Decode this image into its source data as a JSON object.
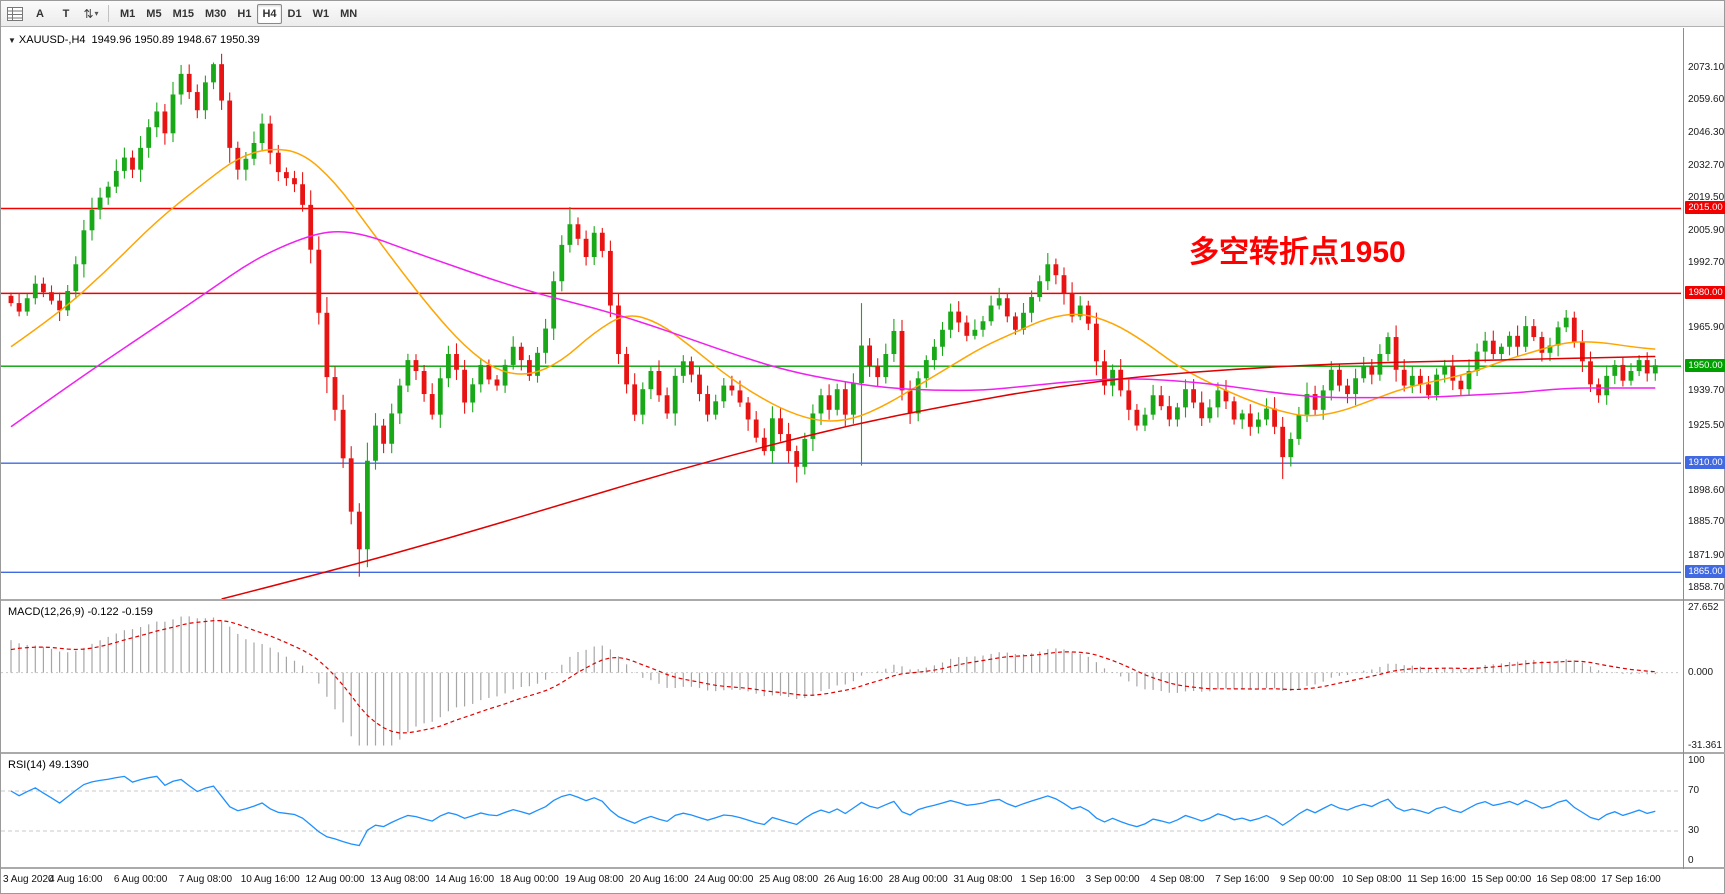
{
  "toolbar": {
    "buttons": [
      {
        "label": "A"
      },
      {
        "label": "T"
      }
    ],
    "cycle_glyph": "⇅",
    "timeframes": [
      "M1",
      "M5",
      "M15",
      "M30",
      "H1",
      "H4",
      "D1",
      "W1",
      "MN"
    ],
    "active_timeframe": "H4"
  },
  "header": {
    "symbol": "XAUUSD-,H4",
    "ohlc": "1949.96 1950.89 1948.67 1950.39"
  },
  "indicators": {
    "macd_label": "MACD(12,26,9) -0.122 -0.159",
    "rsi_label": "RSI(14) 49.1390"
  },
  "annotation": {
    "text": "多空转折点1950",
    "color": "#ff0000"
  },
  "chart_data": {
    "type": "candlestick",
    "symbol": "XAUUSD",
    "timeframe": "H4",
    "colors": {
      "up": "#18a818",
      "down": "#e81414",
      "ma_fast": "#ffa500",
      "ma_medium": "#f020f0",
      "ma_slow": "#e00000",
      "macd_hist": "#a6a6a6",
      "macd_signal": "#e00000",
      "rsi_line": "#1e90ff",
      "grid_dash": "#c8c8c8"
    },
    "y_ticks": [
      {
        "price": 2073.1,
        "label": "2073.10"
      },
      {
        "price": 2059.6,
        "label": "2059.60"
      },
      {
        "price": 2046.3,
        "label": "2046.30"
      },
      {
        "price": 2032.7,
        "label": "2032.70"
      },
      {
        "price": 2019.5,
        "label": "2019.50"
      },
      {
        "price": 2005.9,
        "label": "2005.90"
      },
      {
        "price": 1992.7,
        "label": "1992.70"
      },
      {
        "price": 1965.9,
        "label": "1965.90"
      },
      {
        "price": 1939.7,
        "label": "1939.70"
      },
      {
        "price": 1925.5,
        "label": "1925.50"
      },
      {
        "price": 1898.6,
        "label": "1898.60"
      },
      {
        "price": 1885.7,
        "label": "1885.70"
      },
      {
        "price": 1871.9,
        "label": "1871.90"
      },
      {
        "price": 1858.7,
        "label": "1858.70"
      }
    ],
    "levels": [
      {
        "price": 2015.0,
        "label": "2015.00",
        "color": "#f20000"
      },
      {
        "price": 1980.0,
        "label": "1980.00",
        "color": "#f20000"
      },
      {
        "price": 1950.0,
        "label": "1950.00",
        "color": "#00a000"
      },
      {
        "price": 1910.0,
        "label": "1910.00",
        "color": "#4169e1"
      },
      {
        "price": 1865.0,
        "label": "1865.00",
        "color": "#4169e1"
      }
    ],
    "x_labels": [
      "3 Aug 2020",
      "4 Aug 16:00",
      "6 Aug 00:00",
      "7 Aug 08:00",
      "10 Aug 16:00",
      "12 Aug 00:00",
      "13 Aug 08:00",
      "14 Aug 16:00",
      "18 Aug 00:00",
      "19 Aug 08:00",
      "20 Aug 16:00",
      "24 Aug 00:00",
      "25 Aug 08:00",
      "26 Aug 16:00",
      "28 Aug 00:00",
      "31 Aug 08:00",
      "1 Sep 16:00",
      "3 Sep 00:00",
      "4 Sep 08:00",
      "7 Sep 16:00",
      "9 Sep 00:00",
      "10 Sep 08:00",
      "11 Sep 16:00",
      "15 Sep 00:00",
      "16 Sep 08:00",
      "17 Sep 16:00"
    ],
    "closes": [
      1976.0,
      1972.5,
      1978.0,
      1984.0,
      1980.5,
      1977.0,
      1973.0,
      1981.0,
      1992.0,
      2006.0,
      2014.5,
      2019.5,
      2024.0,
      2030.5,
      2036.0,
      2031.0,
      2040.0,
      2048.5,
      2055.0,
      2046.0,
      2062.0,
      2070.5,
      2063.0,
      2055.5,
      2067.0,
      2074.5,
      2059.5,
      2040.0,
      2031.0,
      2035.5,
      2042.0,
      2050.0,
      2038.0,
      2030.0,
      2027.5,
      2025.0,
      2016.5,
      1998.0,
      1972.0,
      1945.5,
      1932.0,
      1912.0,
      1890.0,
      1874.5,
      1911.0,
      1925.5,
      1918.0,
      1930.5,
      1942.0,
      1952.5,
      1948.0,
      1938.5,
      1930.0,
      1945.0,
      1955.0,
      1948.5,
      1935.0,
      1942.5,
      1950.5,
      1944.5,
      1942.0,
      1950.5,
      1958.0,
      1952.5,
      1946.0,
      1955.5,
      1965.5,
      1985.0,
      2000.0,
      2008.5,
      2002.5,
      1995.0,
      2005.0,
      1997.5,
      1975.0,
      1955.0,
      1942.5,
      1930.0,
      1940.5,
      1948.0,
      1938.0,
      1930.5,
      1946.0,
      1952.0,
      1946.5,
      1938.5,
      1930.0,
      1935.5,
      1942.0,
      1940.0,
      1935.0,
      1928.0,
      1920.5,
      1915.0,
      1928.5,
      1922.0,
      1915.0,
      1908.5,
      1920.0,
      1930.5,
      1938.0,
      1932.0,
      1940.5,
      1930.0,
      1943.0,
      1958.5,
      1950.0,
      1945.5,
      1955.0,
      1964.5,
      1940.0,
      1930.5,
      1945.0,
      1952.5,
      1958.0,
      1965.0,
      1972.5,
      1968.0,
      1962.5,
      1965.0,
      1968.5,
      1975.0,
      1978.0,
      1970.5,
      1965.0,
      1972.0,
      1978.5,
      1985.0,
      1992.0,
      1987.5,
      1980.0,
      1970.5,
      1975.0,
      1967.5,
      1952.0,
      1942.0,
      1948.5,
      1940.0,
      1932.0,
      1925.5,
      1930.0,
      1938.0,
      1933.5,
      1928.0,
      1933.0,
      1940.5,
      1935.0,
      1928.5,
      1933.0,
      1940.0,
      1935.5,
      1928.0,
      1930.5,
      1925.0,
      1928.0,
      1932.5,
      1925.0,
      1912.5,
      1920.0,
      1930.0,
      1938.5,
      1932.0,
      1940.0,
      1948.5,
      1942.0,
      1938.5,
      1945.0,
      1950.0,
      1946.5,
      1955.0,
      1962.0,
      1948.5,
      1942.0,
      1946.0,
      1942.5,
      1938.0,
      1946.5,
      1950.0,
      1944.0,
      1940.5,
      1948.0,
      1956.0,
      1960.5,
      1955.0,
      1958.0,
      1962.5,
      1958.0,
      1966.5,
      1962.0,
      1955.5,
      1958.5,
      1966.0,
      1970.0,
      1960.0,
      1952.0,
      1942.5,
      1938.0,
      1946.0,
      1950.5,
      1944.0,
      1948.0,
      1952.5,
      1947.0,
      1950.4
    ],
    "wick_overrides": {
      "25": {
        "high": 2075.2
      },
      "43": {
        "low": 1863.2
      },
      "69": {
        "high": 2015.6
      },
      "97": {
        "low": 1902.0
      },
      "105": {
        "low": 1909.0,
        "high": 1976.0
      },
      "157": {
        "low": 1903.5
      }
    },
    "moving_averages": [
      {
        "name": "ma-fast",
        "color": "#ffa500",
        "points": [
          [
            0,
            1958
          ],
          [
            6,
            1972
          ],
          [
            12,
            1990
          ],
          [
            18,
            2010
          ],
          [
            24,
            2026
          ],
          [
            28,
            2036
          ],
          [
            32,
            2040
          ],
          [
            36,
            2038
          ],
          [
            40,
            2026
          ],
          [
            44,
            2008
          ],
          [
            48,
            1990
          ],
          [
            52,
            1973
          ],
          [
            56,
            1958
          ],
          [
            60,
            1948
          ],
          [
            64,
            1946
          ],
          [
            68,
            1952
          ],
          [
            72,
            1964
          ],
          [
            76,
            1972
          ],
          [
            80,
            1968
          ],
          [
            84,
            1958
          ],
          [
            88,
            1947
          ],
          [
            92,
            1938
          ],
          [
            96,
            1931
          ],
          [
            100,
            1927
          ],
          [
            104,
            1928
          ],
          [
            108,
            1934
          ],
          [
            112,
            1942
          ],
          [
            116,
            1950
          ],
          [
            120,
            1958
          ],
          [
            124,
            1964
          ],
          [
            128,
            1970
          ],
          [
            132,
            1972
          ],
          [
            136,
            1968
          ],
          [
            140,
            1960
          ],
          [
            144,
            1950
          ],
          [
            148,
            1943
          ],
          [
            152,
            1937
          ],
          [
            156,
            1932
          ],
          [
            160,
            1929
          ],
          [
            164,
            1931
          ],
          [
            168,
            1936
          ],
          [
            172,
            1941
          ],
          [
            176,
            1944
          ],
          [
            180,
            1947
          ],
          [
            184,
            1952
          ],
          [
            188,
            1956
          ],
          [
            192,
            1960
          ],
          [
            196,
            1960
          ],
          [
            200,
            1958
          ],
          [
            203,
            1957
          ]
        ]
      },
      {
        "name": "ma-medium",
        "color": "#f020f0",
        "points": [
          [
            0,
            1925
          ],
          [
            8,
            1944
          ],
          [
            16,
            1962
          ],
          [
            24,
            1980
          ],
          [
            30,
            1994
          ],
          [
            36,
            2003
          ],
          [
            40,
            2006
          ],
          [
            44,
            2004
          ],
          [
            48,
            1999
          ],
          [
            54,
            1992
          ],
          [
            60,
            1985
          ],
          [
            66,
            1979
          ],
          [
            72,
            1974
          ],
          [
            78,
            1968
          ],
          [
            84,
            1961
          ],
          [
            90,
            1954
          ],
          [
            96,
            1948
          ],
          [
            102,
            1944
          ],
          [
            108,
            1941
          ],
          [
            114,
            1940
          ],
          [
            120,
            1940
          ],
          [
            126,
            1942
          ],
          [
            132,
            1944
          ],
          [
            138,
            1945
          ],
          [
            144,
            1944
          ],
          [
            150,
            1942
          ],
          [
            156,
            1939
          ],
          [
            162,
            1937
          ],
          [
            168,
            1937
          ],
          [
            174,
            1937
          ],
          [
            180,
            1938
          ],
          [
            186,
            1939
          ],
          [
            192,
            1941
          ],
          [
            198,
            1941
          ],
          [
            203,
            1941
          ]
        ]
      },
      {
        "name": "ma-slow",
        "color": "#e00000",
        "points": [
          [
            26,
            1854
          ],
          [
            40,
            1866
          ],
          [
            54,
            1879
          ],
          [
            68,
            1893
          ],
          [
            80,
            1905
          ],
          [
            92,
            1916
          ],
          [
            104,
            1926
          ],
          [
            116,
            1934
          ],
          [
            128,
            1941
          ],
          [
            140,
            1946
          ],
          [
            152,
            1949
          ],
          [
            164,
            1951
          ],
          [
            176,
            1952
          ],
          [
            190,
            1953
          ],
          [
            203,
            1954
          ]
        ]
      }
    ],
    "macd": {
      "fast": 12,
      "slow": 26,
      "signal": 9,
      "last": -0.122,
      "last_signal": -0.159,
      "axis": [
        {
          "value": 27.652,
          "label": "27.652"
        },
        {
          "value": 0,
          "label": "0.000"
        },
        {
          "value": -31.361,
          "label": "-31.361"
        }
      ]
    },
    "rsi": {
      "period": 14,
      "last": 49.139,
      "axis": [
        {
          "value": 100,
          "label": "100"
        },
        {
          "value": 70,
          "label": "70"
        },
        {
          "value": 30,
          "label": "30"
        },
        {
          "value": 0,
          "label": "0"
        }
      ],
      "level_lines": [
        70,
        30
      ]
    }
  }
}
